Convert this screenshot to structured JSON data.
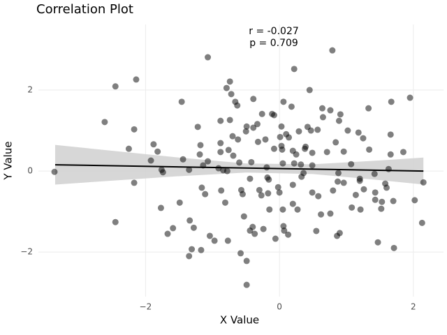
{
  "chart_data": {
    "type": "scatter",
    "title": "Correlation Plot",
    "x_label": "X Value",
    "y_label": "Y Value",
    "annotations": [
      "r = -0.027",
      "p = 0.709"
    ],
    "xlim": [
      -3.6,
      2.45
    ],
    "ylim": [
      -3.1,
      3.62
    ],
    "xticks": [
      {
        "value": -2,
        "label": "−2"
      },
      0,
      2
    ],
    "yticks": [
      {
        "value": -2,
        "label": "−2"
      },
      0,
      2
    ],
    "grid": true,
    "color": "#000000",
    "alpha": 0.5,
    "fit_color": "#000000",
    "band_color": "#d3d3d3",
    "x": [
      -3.36,
      -2.61,
      -2.45,
      -2.45,
      -2.25,
      -2.17,
      -2.14,
      -2.17,
      -1.92,
      -1.88,
      -1.82,
      -1.76,
      -1.74,
      -1.77,
      -1.67,
      -1.59,
      -1.49,
      -1.46,
      -1.44,
      -1.35,
      -1.34,
      -1.31,
      -1.28,
      -1.35,
      -1.22,
      -1.18,
      -1.19,
      -1.16,
      -1.17,
      -1.14,
      -1.11,
      -1.07,
      -1.07,
      -1.04,
      -0.97,
      -0.91,
      -0.88,
      -0.88,
      -0.88,
      -0.87,
      -0.84,
      -0.81,
      -0.77,
      -0.79,
      -0.74,
      -0.74,
      -0.76,
      -0.78,
      -0.72,
      -0.7,
      -0.69,
      -0.66,
      -0.63,
      -0.62,
      -0.6,
      -0.57,
      -0.55,
      -0.58,
      -0.53,
      -0.49,
      -0.5,
      -0.49,
      -0.49,
      -0.44,
      -0.42,
      -0.39,
      -0.39,
      -0.37,
      -0.33,
      -0.32,
      -0.3,
      -0.27,
      -0.26,
      -0.24,
      -0.21,
      -0.19,
      -0.17,
      -0.16,
      -0.15,
      -0.11,
      -0.08,
      -0.08,
      -0.06,
      -0.02,
      0.0,
      0.01,
      0.03,
      0.03,
      0.04,
      0.05,
      0.05,
      0.06,
      0.06,
      0.07,
      0.1,
      0.14,
      0.13,
      0.18,
      0.2,
      0.2,
      0.2,
      0.22,
      0.22,
      0.25,
      0.27,
      0.29,
      0.32,
      0.33,
      0.36,
      0.38,
      0.39,
      0.42,
      0.45,
      0.47,
      0.49,
      0.49,
      0.49,
      0.55,
      0.57,
      0.58,
      0.62,
      0.64,
      0.65,
      0.71,
      0.76,
      0.76,
      0.79,
      0.8,
      0.84,
      0.86,
      0.87,
      0.88,
      0.89,
      0.9,
      0.91,
      0.96,
      0.96,
      1.02,
      1.07,
      1.08,
      1.14,
      1.18,
      1.2,
      1.2,
      1.21,
      1.25,
      1.26,
      1.33,
      1.34,
      1.42,
      1.43,
      1.43,
      1.47,
      1.52,
      1.53,
      1.58,
      1.6,
      1.63,
      1.66,
      1.66,
      1.67,
      1.71,
      1.7,
      1.85,
      1.95,
      2.02,
      2.13,
      2.15,
      -0.44,
      -0.4,
      -0.18
    ],
    "y": [
      -0.02,
      1.21,
      2.09,
      -1.26,
      0.55,
      1.03,
      2.26,
      -0.29,
      0.26,
      0.66,
      0.48,
      0.03,
      -0.03,
      -0.91,
      -1.55,
      -1.41,
      -0.78,
      1.71,
      0.29,
      0.03,
      -1.22,
      -1.93,
      -1.4,
      -2.1,
      1.09,
      0.64,
      0.41,
      -0.41,
      -1.95,
      0.14,
      -0.57,
      2.81,
      0.24,
      -1.6,
      -1.72,
      0.07,
      1.24,
      0.69,
      0.47,
      -0.48,
      0.02,
      -0.78,
      -1.72,
      2.05,
      2.21,
      1.26,
      0.52,
      0.0,
      1.9,
      0.86,
      0.38,
      1.71,
      1.62,
      0.78,
      0.21,
      -0.47,
      -0.57,
      -2.03,
      -1.12,
      1.1,
      0.98,
      -2.81,
      -2.22,
      -1.47,
      0.22,
      1.78,
      1.07,
      -1.55,
      1.16,
      0.72,
      -0.47,
      -0.6,
      1.41,
      -1.43,
      0.78,
      0.09,
      -0.55,
      -0.21,
      -0.95,
      1.41,
      1.38,
      0.55,
      -1.67,
      -0.4,
      -0.53,
      0.84,
      1.1,
      0.62,
      0.53,
      0.19,
      -0.95,
      1.71,
      -1.36,
      -1.47,
      0.91,
      0.83,
      -1.57,
      1.59,
      0.5,
      -0.81,
      -0.34,
      2.52,
      0.19,
      0.41,
      -0.95,
      0.98,
      0.16,
      -0.14,
      -0.05,
      0.55,
      0.6,
      1.09,
      2.0,
      1.0,
      0.45,
      0.14,
      -0.53,
      -1.48,
      1.02,
      -0.62,
      -1.07,
      1.55,
      1.33,
      0.47,
      1.5,
      -1.05,
      2.98,
      -0.48,
      0.71,
      -1.6,
      -0.26,
      -0.05,
      1.24,
      -1.53,
      1.4,
      -0.29,
      0.48,
      1.0,
      0.17,
      -0.9,
      -0.59,
      0.95,
      -0.24,
      -0.19,
      -0.95,
      0.81,
      -0.45,
      1.55,
      0.53,
      -0.07,
      -0.53,
      -0.71,
      -1.76,
      -0.93,
      -0.76,
      -0.31,
      -0.41,
      0.05,
      0.9,
      0.41,
      1.71,
      -1.9,
      -0.74,
      0.47,
      1.81,
      -0.72,
      -1.28,
      -0.28,
      -0.19,
      -1.38,
      -0.16
    ],
    "fit": {
      "x": [
        -3.35,
        2.15
      ],
      "y": [
        0.155,
        0.0
      ]
    },
    "band": {
      "x": [
        -3.35,
        -2.5,
        -1.5,
        -0.5,
        0.5,
        1.5,
        2.15
      ],
      "lower": [
        -0.335,
        -0.237,
        -0.127,
        -0.037,
        -0.073,
        -0.224,
        -0.333
      ],
      "upper": [
        0.645,
        0.501,
        0.333,
        0.187,
        0.167,
        0.262,
        0.333
      ]
    }
  }
}
